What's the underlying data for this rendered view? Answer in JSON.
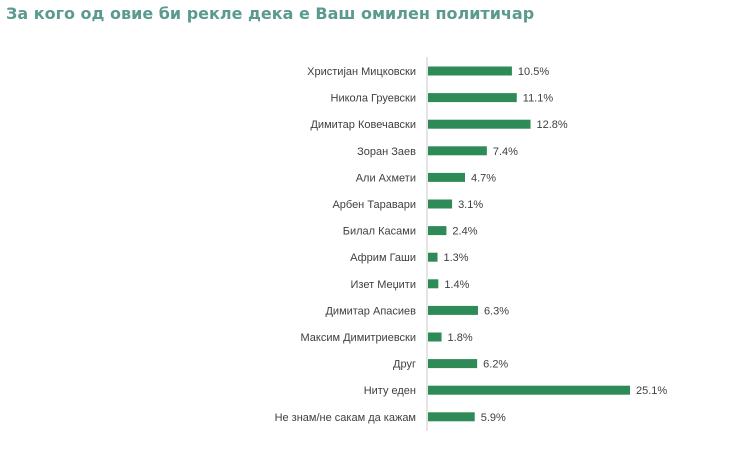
{
  "title": "За кого од овие би рекле дека е Ваш омилен политичар",
  "colors": {
    "bar": "#2e8b57",
    "title": "#5b9a8f",
    "axis": "#c8c8c8",
    "text": "#404040"
  },
  "chart_data": {
    "type": "bar",
    "orientation": "horizontal",
    "title": "За кого од овие би рекле дека е Ваш омилен политичар",
    "categories": [
      "Христијан Мицковски",
      "Никола Груевски",
      "Димитар Ковечавски",
      "Зоран Заев",
      "Али Ахмети",
      "Арбен Таравари",
      "Билал Касами",
      "Африм Гаши",
      "Изет Меџити",
      "Димитар Апасиев",
      "Максим Димитриевски",
      "Друг",
      "Ниту еден",
      "Не знам/не сакам да кажам"
    ],
    "values": [
      10.5,
      11.1,
      12.8,
      7.4,
      4.7,
      3.1,
      2.4,
      1.3,
      1.4,
      6.3,
      1.8,
      6.2,
      25.1,
      5.9
    ],
    "value_labels": [
      "10.5%",
      "11.1%",
      "12.8%",
      "7.4%",
      "4.7%",
      "3.1%",
      "2.4%",
      "1.3%",
      "1.4%",
      "6.3%",
      "1.8%",
      "6.2%",
      "25.1%",
      "5.9%"
    ],
    "xlim": [
      0,
      25.1
    ],
    "grid": false,
    "legend": "none"
  }
}
